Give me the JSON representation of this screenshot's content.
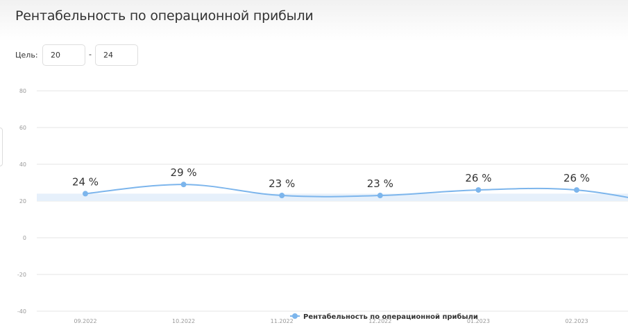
{
  "page": {
    "title": "Рентабельность по операционной прибыли"
  },
  "goal": {
    "label": "Цель:",
    "separator": "-",
    "min_value": "20",
    "max_value": "24"
  },
  "chart_data": {
    "type": "line",
    "categories": [
      "09.2022",
      "10.2022",
      "11.2022",
      "12.2022",
      "01.2023",
      "02.2023"
    ],
    "series": [
      {
        "name": "Рентабельность по операционной прибыли",
        "values": [
          24,
          29,
          23,
          23,
          26,
          26
        ],
        "labels": [
          "24 %",
          "29 %",
          "23 %",
          "23 %",
          "26 %",
          "26 %"
        ],
        "color": "#7cb5ec"
      }
    ],
    "trailing_value": 17,
    "target_band": [
      20,
      24
    ],
    "target_band_color": "#e6f0fb",
    "ylim": [
      -40,
      80
    ],
    "y_ticks": [
      "-40",
      "-20",
      "0",
      "20",
      "40",
      "60",
      "80"
    ],
    "y_tick_values": [
      -40,
      -20,
      0,
      20,
      40,
      60,
      80
    ],
    "grid": true,
    "legend_position": "bottom-center",
    "xlabel": "",
    "ylabel": ""
  }
}
